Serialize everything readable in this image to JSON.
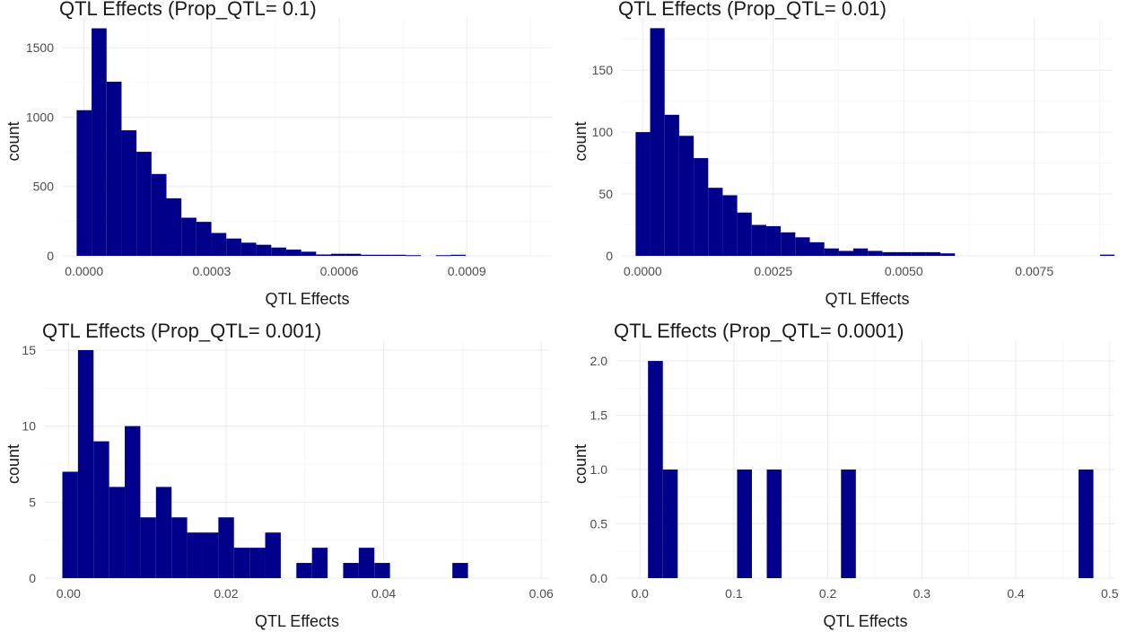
{
  "chart_data": [
    {
      "type": "bar",
      "title": "QTL Effects (Prop_QTL= 0.1)",
      "xlabel": "QTL Effects",
      "ylabel": "count",
      "xlim": [
        -5e-05,
        0.0011
      ],
      "ylim": [
        0,
        1650
      ],
      "x_ticks": [
        0.0,
        0.0003,
        0.0006,
        0.0009
      ],
      "x_tick_labels": [
        "0.0000",
        "0.0003",
        "0.0006",
        "0.0009"
      ],
      "y_ticks": [
        0,
        500,
        1000,
        1500
      ],
      "y_tick_labels": [
        "0",
        "500",
        "1000",
        "1500"
      ],
      "bin_start": -1.75e-05,
      "bin_width": 3.52e-05,
      "values": [
        1050,
        1640,
        1255,
        905,
        750,
        590,
        415,
        275,
        245,
        165,
        125,
        95,
        80,
        60,
        45,
        30,
        10,
        15,
        15,
        8,
        8,
        8,
        5,
        0,
        5,
        8
      ]
    },
    {
      "type": "bar",
      "title": "QTL Effects (Prop_QTL= 0.01)",
      "xlabel": "QTL Effects",
      "ylabel": "count",
      "xlim": [
        -0.0004,
        0.009
      ],
      "ylim": [
        0,
        185
      ],
      "x_ticks": [
        0.0,
        0.0025,
        0.005,
        0.0075
      ],
      "x_tick_labels": [
        "0.0000",
        "0.0025",
        "0.0050",
        "0.0075"
      ],
      "y_ticks": [
        0,
        50,
        100,
        150
      ],
      "y_tick_labels": [
        "0",
        "50",
        "100",
        "150"
      ],
      "bin_start": -0.000136,
      "bin_width": 0.000278,
      "values": [
        100,
        184,
        114,
        97,
        79,
        55,
        49,
        35,
        25,
        24,
        19,
        15,
        11,
        6,
        4,
        6,
        4,
        3,
        3,
        3,
        3,
        2,
        0,
        0,
        0,
        0,
        0,
        0,
        0,
        0,
        0,
        0,
        1
      ]
    },
    {
      "type": "bar",
      "title": "QTL Effects (Prop_QTL= 0.001)",
      "xlabel": "QTL Effects",
      "ylabel": "count",
      "xlim": [
        -0.003,
        0.061
      ],
      "ylim": [
        0,
        15
      ],
      "x_ticks": [
        0.0,
        0.02,
        0.04,
        0.06
      ],
      "x_tick_labels": [
        "0.00",
        "0.02",
        "0.04",
        "0.06"
      ],
      "y_ticks": [
        0,
        5,
        10,
        15
      ],
      "y_tick_labels": [
        "0",
        "5",
        "10",
        "15"
      ],
      "bin_start": -0.00078,
      "bin_width": 0.00198,
      "values": [
        7,
        15,
        9,
        6,
        10,
        4,
        6,
        4,
        3,
        3,
        4,
        2,
        2,
        3,
        0,
        1,
        2,
        0,
        1,
        2,
        1,
        0,
        0,
        0,
        0,
        1
      ]
    },
    {
      "type": "bar",
      "title": "QTL Effects (Prop_QTL= 0.0001)",
      "xlabel": "QTL Effects",
      "ylabel": "count",
      "xlim": [
        -0.025,
        0.505
      ],
      "ylim": [
        0,
        2.1
      ],
      "x_ticks": [
        0.0,
        0.1,
        0.2,
        0.3,
        0.4,
        0.5
      ],
      "x_tick_labels": [
        "0.0",
        "0.1",
        "0.2",
        "0.3",
        "0.4",
        "0.5"
      ],
      "y_ticks": [
        0,
        0.5,
        1.0,
        1.5,
        2.0
      ],
      "y_tick_labels": [
        "0.0",
        "0.5",
        "1.0",
        "1.5",
        "2.0"
      ],
      "bin_start": 0.0086,
      "bin_width": 0.0158,
      "values": [
        2,
        1,
        0,
        0,
        0,
        0,
        1,
        0,
        1,
        0,
        0,
        0,
        0,
        1,
        0,
        0,
        0,
        0,
        0,
        0,
        0,
        0,
        0,
        0,
        0,
        0,
        0,
        0,
        0,
        1
      ]
    }
  ],
  "colors": {
    "bar_fill": "#00008B",
    "grid": "#EBEBEB"
  }
}
